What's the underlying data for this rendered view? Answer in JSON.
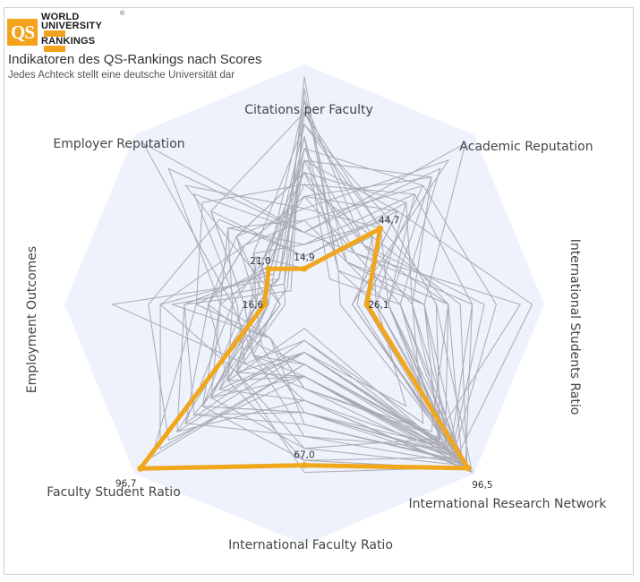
{
  "logo": {
    "badge": "QS",
    "line1": "WORLD",
    "line2": "UNIVERSITY",
    "line3": "RANKINGS",
    "reg": "®"
  },
  "title": "Indikatoren des QS-Rankings nach Scores",
  "subtitle": "Jedes Achteck stellt eine deutsche Universität dar",
  "colors": {
    "background_octagon": "#eef2fc",
    "highlight": "#f0a71c",
    "others": "#a9a9b4"
  },
  "chart_data": {
    "type": "radar",
    "axes": [
      "Citations per Faculty",
      "Academic Reputation",
      "International Students Ratio",
      "International Research Network",
      "International Faculty Ratio",
      "Faculty Student Ratio",
      "Employment Outcomes",
      "Employer Reputation"
    ],
    "range": [
      0,
      100
    ],
    "highlighted": {
      "values": [
        14.9,
        44.7,
        26.1,
        96.5,
        67.0,
        96.7,
        16.6,
        21.0
      ],
      "labels": [
        "14,9",
        "44,7",
        "26,1",
        "96,5",
        "67,0",
        "96,7",
        "16,6",
        "21,0"
      ]
    },
    "others": [
      [
        95,
        20,
        15,
        97,
        30,
        40,
        8,
        12
      ],
      [
        60,
        75,
        35,
        88,
        20,
        55,
        20,
        25
      ],
      [
        30,
        95,
        50,
        92,
        15,
        70,
        30,
        95
      ],
      [
        80,
        40,
        22,
        85,
        55,
        30,
        12,
        10
      ],
      [
        45,
        30,
        70,
        95,
        45,
        25,
        40,
        35
      ],
      [
        20,
        55,
        95,
        90,
        65,
        60,
        25,
        55
      ],
      [
        70,
        15,
        40,
        80,
        25,
        85,
        60,
        18
      ],
      [
        55,
        60,
        30,
        98,
        10,
        45,
        15,
        40
      ],
      [
        85,
        25,
        60,
        75,
        35,
        20,
        35,
        22
      ],
      [
        40,
        85,
        20,
        93,
        50,
        65,
        10,
        70
      ],
      [
        65,
        35,
        45,
        70,
        15,
        35,
        80,
        15
      ],
      [
        25,
        50,
        55,
        99,
        40,
        50,
        20,
        30
      ],
      [
        90,
        20,
        30,
        60,
        20,
        75,
        50,
        8
      ],
      [
        35,
        70,
        80,
        88,
        30,
        30,
        30,
        45
      ],
      [
        75,
        45,
        25,
        95,
        60,
        55,
        18,
        20
      ],
      [
        50,
        65,
        35,
        82,
        25,
        90,
        45,
        60
      ],
      [
        15,
        40,
        65,
        96,
        70,
        40,
        22,
        28
      ],
      [
        60,
        30,
        90,
        78,
        35,
        20,
        55,
        12
      ],
      [
        30,
        80,
        40,
        90,
        45,
        60,
        35,
        80
      ],
      [
        70,
        20,
        50,
        85,
        20,
        40,
        15,
        18
      ],
      [
        45,
        55,
        20,
        94,
        55,
        70,
        40,
        35
      ],
      [
        85,
        35,
        75,
        87,
        40,
        30,
        25,
        15
      ],
      [
        20,
        60,
        45,
        91,
        30,
        80,
        65,
        50
      ],
      [
        55,
        25,
        35,
        97,
        65,
        45,
        30,
        25
      ],
      [
        40,
        45,
        60,
        83,
        25,
        25,
        20,
        40
      ],
      [
        65,
        70,
        25,
        89,
        45,
        65,
        50,
        20
      ],
      [
        30,
        30,
        40,
        95,
        35,
        35,
        28,
        65
      ],
      [
        75,
        50,
        55,
        80,
        20,
        50,
        10,
        30
      ],
      [
        50,
        40,
        30,
        92,
        50,
        20,
        45,
        22
      ],
      [
        25,
        65,
        70,
        86,
        30,
        55,
        35,
        45
      ],
      [
        60,
        55,
        20,
        98,
        40,
        75,
        20,
        15
      ],
      [
        35,
        25,
        50,
        79,
        60,
        40,
        60,
        35
      ],
      [
        80,
        45,
        35,
        90,
        25,
        30,
        25,
        55
      ],
      [
        45,
        75,
        45,
        84,
        45,
        60,
        15,
        25
      ],
      [
        55,
        35,
        60,
        93,
        30,
        45,
        40,
        40
      ]
    ]
  }
}
